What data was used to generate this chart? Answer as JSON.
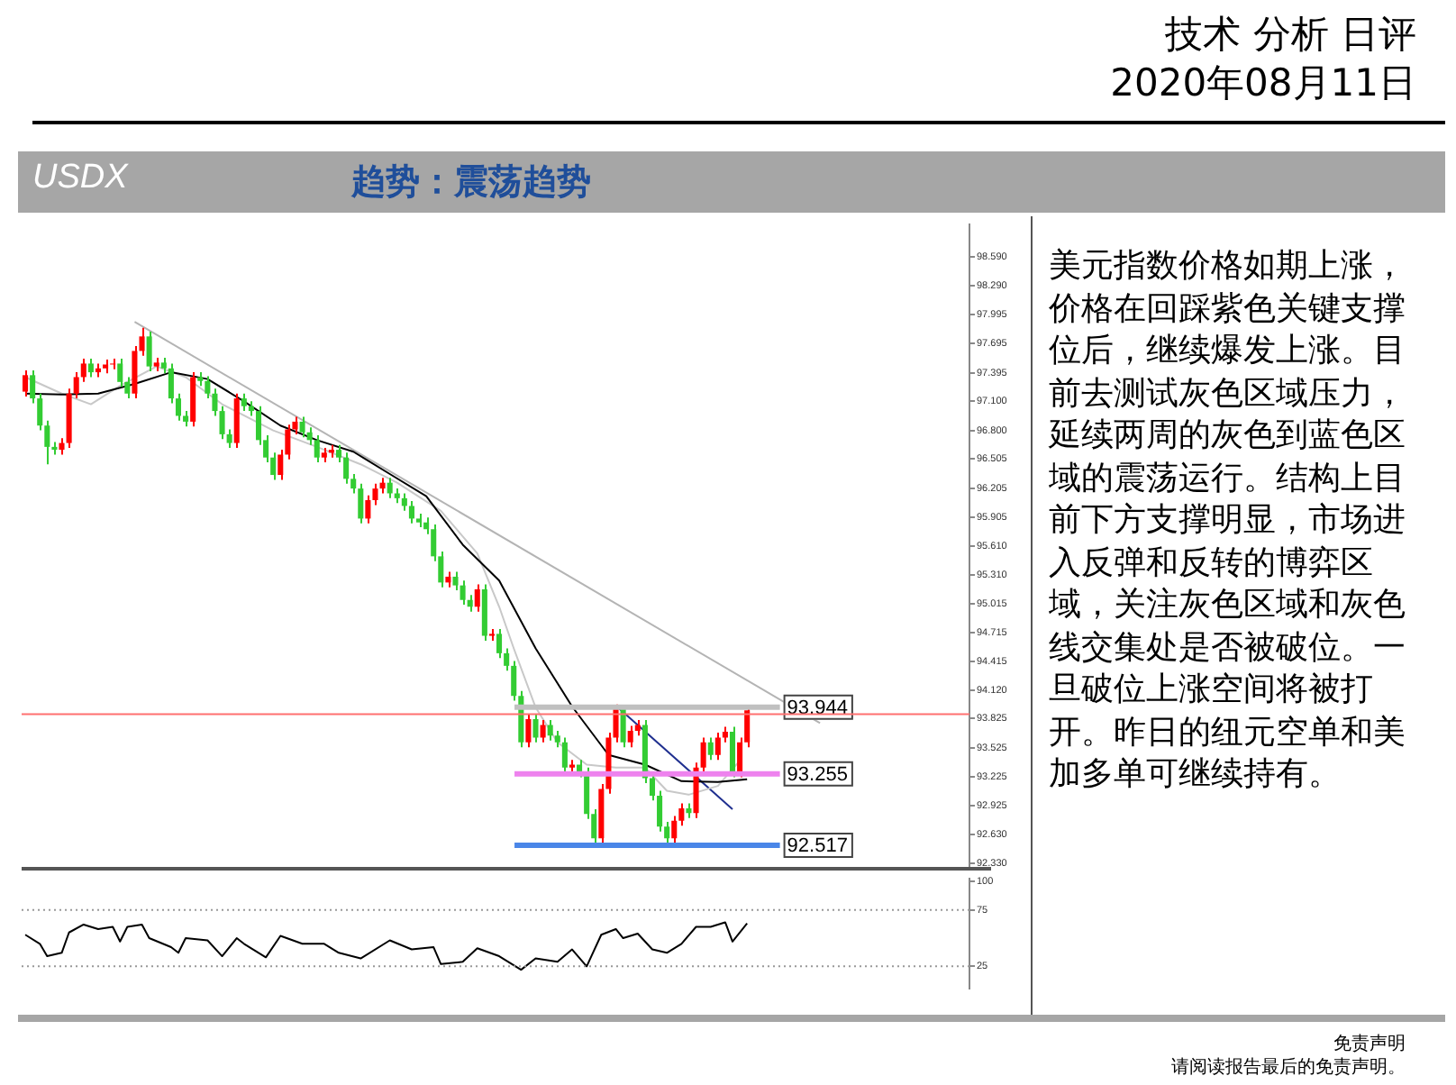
{
  "chart_data": [
    {
      "type": "candlestick",
      "title": "USDX",
      "subtitle": "趋势：震荡趋势",
      "annotations": [
        "技术 分析 日评",
        "2020年08月11日",
        "美元指数价格如期上涨，价格在回踩紫色关键支撑位后，继续爆发上涨。目前去测试灰色区域压力，延续两周的灰色到蓝色区域的震荡运行。结构上目前下方支撑明显，市场进入反弹和反转的博弈区域，关注灰色区域和灰色线交集处是否被破位。一旦破位上涨空间将被打开。昨日的纽元空单和美加多单可继续持有。",
        "免责声明",
        "请阅读报告最后的免责声明。"
      ],
      "categories": [
        null,
        null,
        null,
        null,
        null,
        null,
        null,
        null,
        null,
        null,
        null,
        null,
        null,
        null,
        null,
        null,
        null,
        null,
        null,
        null,
        null,
        null,
        null,
        null,
        null,
        null,
        null,
        null,
        null,
        null,
        null,
        null,
        null,
        null,
        null,
        null,
        null,
        null,
        null,
        null,
        null,
        null,
        null,
        null,
        null,
        null,
        null,
        null,
        null,
        null,
        null,
        null,
        null,
        null,
        null,
        null,
        null,
        null,
        null,
        null,
        null,
        null,
        null,
        null,
        null,
        null,
        null,
        null,
        null,
        null,
        null,
        null,
        null,
        null,
        null,
        null,
        null,
        null,
        null,
        null,
        null,
        null,
        null,
        null,
        null,
        null,
        null,
        null,
        null,
        null,
        null,
        null,
        null,
        null,
        null,
        null,
        null,
        null,
        null,
        null,
        null,
        null,
        null,
        null,
        null,
        null,
        null,
        null,
        null,
        null,
        null,
        null,
        null,
        null,
        null,
        null,
        null,
        null,
        null,
        null,
        null,
        null,
        null,
        null,
        null,
        null,
        null,
        null,
        null,
        null
      ],
      "ohlc": [
        [
          97.2,
          97.42,
          97.15,
          97.37
        ],
        [
          97.37,
          97.42,
          97.08,
          97.13
        ],
        [
          97.13,
          97.18,
          96.8,
          96.85
        ],
        [
          96.85,
          96.9,
          96.45,
          96.63
        ],
        [
          96.63,
          96.68,
          96.55,
          96.6
        ],
        [
          96.6,
          96.72,
          96.55,
          96.67
        ],
        [
          96.67,
          97.23,
          96.62,
          97.18
        ],
        [
          97.18,
          97.4,
          97.13,
          97.35
        ],
        [
          97.35,
          97.54,
          97.3,
          97.49
        ],
        [
          97.49,
          97.54,
          97.35,
          97.4
        ],
        [
          97.4,
          97.49,
          97.35,
          97.44
        ],
        [
          97.44,
          97.53,
          97.39,
          97.48
        ],
        [
          97.48,
          97.54,
          97.43,
          97.49
        ],
        [
          97.49,
          97.54,
          97.25,
          97.3
        ],
        [
          97.3,
          97.35,
          97.13,
          97.18
        ],
        [
          97.18,
          97.67,
          97.13,
          97.62
        ],
        [
          97.62,
          97.86,
          97.57,
          97.77
        ],
        [
          97.77,
          97.82,
          97.41,
          97.46
        ],
        [
          97.46,
          97.55,
          97.41,
          97.5
        ],
        [
          97.5,
          97.55,
          97.39,
          97.44
        ],
        [
          97.44,
          97.49,
          97.08,
          97.13
        ],
        [
          97.13,
          97.18,
          96.9,
          96.95
        ],
        [
          96.95,
          97.0,
          96.84,
          96.89
        ],
        [
          96.89,
          97.4,
          96.84,
          97.35
        ],
        [
          97.35,
          97.4,
          97.26,
          97.31
        ],
        [
          97.31,
          97.36,
          97.13,
          97.18
        ],
        [
          97.18,
          97.23,
          96.95,
          97.0
        ],
        [
          97.0,
          97.05,
          96.71,
          96.76
        ],
        [
          96.76,
          96.81,
          96.62,
          96.67
        ],
        [
          96.67,
          97.18,
          96.62,
          97.13
        ],
        [
          97.13,
          97.18,
          97.0,
          97.05
        ],
        [
          97.05,
          97.1,
          96.95,
          97.0
        ],
        [
          97.0,
          97.05,
          96.65,
          96.7
        ],
        [
          96.7,
          96.75,
          96.47,
          96.52
        ],
        [
          96.52,
          96.57,
          96.29,
          96.34
        ],
        [
          96.34,
          96.6,
          96.29,
          96.55
        ],
        [
          96.55,
          96.86,
          96.5,
          96.81
        ],
        [
          96.81,
          96.94,
          96.76,
          96.89
        ],
        [
          96.89,
          96.94,
          96.73,
          96.78
        ],
        [
          96.78,
          96.83,
          96.65,
          96.7
        ],
        [
          96.7,
          96.75,
          96.47,
          96.52
        ],
        [
          96.52,
          96.62,
          96.47,
          96.57
        ],
        [
          96.57,
          96.65,
          96.52,
          96.6
        ],
        [
          96.6,
          96.65,
          96.47,
          96.52
        ],
        [
          96.52,
          96.57,
          96.25,
          96.3
        ],
        [
          96.3,
          96.35,
          96.15,
          96.2
        ],
        [
          96.2,
          96.25,
          95.84,
          95.89
        ],
        [
          95.89,
          96.13,
          95.84,
          96.08
        ],
        [
          96.08,
          96.25,
          96.03,
          96.2
        ],
        [
          96.2,
          96.31,
          96.15,
          96.26
        ],
        [
          96.26,
          96.31,
          96.1,
          96.15
        ],
        [
          96.15,
          96.2,
          96.05,
          96.1
        ],
        [
          96.1,
          96.15,
          95.97,
          96.02
        ],
        [
          96.02,
          96.07,
          95.84,
          95.89
        ],
        [
          95.89,
          95.94,
          95.8,
          95.85
        ],
        [
          95.85,
          95.9,
          95.73,
          95.78
        ],
        [
          95.78,
          95.83,
          95.45,
          95.5
        ],
        [
          95.5,
          95.55,
          95.18,
          95.23
        ],
        [
          95.23,
          95.34,
          95.18,
          95.29
        ],
        [
          95.29,
          95.34,
          95.15,
          95.2
        ],
        [
          95.2,
          95.25,
          95.0,
          95.05
        ],
        [
          95.05,
          95.1,
          94.93,
          94.98
        ],
        [
          94.98,
          95.21,
          94.93,
          95.16
        ],
        [
          95.16,
          95.21,
          94.63,
          94.68
        ],
        [
          94.68,
          94.75,
          94.63,
          94.7
        ],
        [
          94.7,
          94.75,
          94.45,
          94.5
        ],
        [
          94.5,
          94.55,
          94.32,
          94.37
        ],
        [
          94.37,
          94.42,
          94.01,
          94.06
        ],
        [
          94.06,
          94.11,
          93.53,
          93.58
        ],
        [
          93.58,
          93.87,
          93.53,
          93.82
        ],
        [
          93.82,
          93.87,
          93.58,
          93.63
        ],
        [
          93.63,
          93.81,
          93.58,
          93.76
        ],
        [
          93.76,
          93.81,
          93.6,
          93.65
        ],
        [
          93.65,
          93.7,
          93.53,
          93.58
        ],
        [
          93.58,
          93.63,
          93.27,
          93.32
        ],
        [
          93.32,
          93.4,
          93.27,
          93.35
        ],
        [
          93.35,
          93.4,
          93.22,
          93.27
        ],
        [
          93.27,
          93.32,
          92.79,
          92.84
        ],
        [
          92.84,
          92.89,
          92.52,
          92.59
        ],
        [
          92.59,
          93.15,
          92.54,
          93.1
        ],
        [
          93.1,
          93.68,
          93.05,
          93.63
        ],
        [
          93.63,
          93.97,
          93.58,
          93.95
        ],
        [
          93.95,
          93.96,
          93.53,
          93.58
        ],
        [
          93.58,
          93.75,
          93.53,
          93.7
        ],
        [
          93.7,
          93.81,
          93.65,
          93.76
        ],
        [
          93.76,
          93.81,
          93.16,
          93.21
        ],
        [
          93.21,
          93.26,
          92.98,
          93.03
        ],
        [
          93.03,
          93.08,
          92.66,
          92.71
        ],
        [
          92.71,
          92.76,
          92.52,
          92.59
        ],
        [
          92.59,
          92.82,
          92.54,
          92.77
        ],
        [
          92.77,
          92.95,
          92.72,
          92.9
        ],
        [
          92.9,
          92.95,
          92.8,
          92.85
        ],
        [
          92.85,
          93.37,
          92.8,
          93.32
        ],
        [
          93.32,
          93.63,
          93.27,
          93.58
        ],
        [
          93.58,
          93.63,
          93.4,
          93.45
        ],
        [
          93.45,
          93.68,
          93.4,
          93.63
        ],
        [
          93.63,
          93.74,
          93.58,
          93.69
        ],
        [
          93.69,
          93.74,
          93.22,
          93.27
        ],
        [
          93.27,
          93.63,
          93.22,
          93.58
        ],
        [
          93.58,
          93.95,
          93.53,
          93.91
        ],
        null,
        null,
        null,
        null,
        null,
        null,
        null,
        null,
        null,
        null,
        null,
        null,
        null,
        null,
        null,
        null,
        null,
        null,
        null,
        null,
        null,
        null,
        null,
        null,
        null,
        null,
        null,
        null,
        null,
        null
      ],
      "colors": [
        "#ff0000",
        "#33cc33",
        "#33cc33",
        "#33cc33",
        "#33cc33",
        "#ff0000",
        "#ff0000",
        "#ff0000",
        "#ff0000",
        "#33cc33",
        "#ff0000",
        "#ff0000",
        "#ff0000",
        "#33cc33",
        "#33cc33",
        "#ff0000",
        "#ff0000",
        "#33cc33",
        "#ff0000",
        "#33cc33",
        "#33cc33",
        "#33cc33",
        "#33cc33",
        "#ff0000",
        "#33cc33",
        "#33cc33",
        "#33cc33",
        "#33cc33",
        "#33cc33",
        "#ff0000",
        "#33cc33",
        "#33cc33",
        "#33cc33",
        "#33cc33",
        "#33cc33",
        "#ff0000",
        "#ff0000",
        "#ff0000",
        "#33cc33",
        "#33cc33",
        "#33cc33",
        "#ff0000",
        "#ff0000",
        "#33cc33",
        "#33cc33",
        "#33cc33",
        "#33cc33",
        "#ff0000",
        "#ff0000",
        "#ff0000",
        "#33cc33",
        "#33cc33",
        "#33cc33",
        "#33cc33",
        "#33cc33",
        "#33cc33",
        "#33cc33",
        "#33cc33",
        "#ff0000",
        "#33cc33",
        "#33cc33",
        "#33cc33",
        "#ff0000",
        "#33cc33",
        "#ff0000",
        "#33cc33",
        "#33cc33",
        "#33cc33",
        "#33cc33",
        "#ff0000",
        "#33cc33",
        "#ff0000",
        "#33cc33",
        "#33cc33",
        "#33cc33",
        "#ff0000",
        "#33cc33",
        "#33cc33",
        "#33cc33",
        "#ff0000",
        "#ff0000",
        "#ff0000",
        "#33cc33",
        "#ff0000",
        "#ff0000",
        "#33cc33",
        "#33cc33",
        "#33cc33",
        "#33cc33",
        "#ff0000",
        "#ff0000",
        "#33cc33",
        "#ff0000",
        "#ff0000",
        "#33cc33",
        "#ff0000",
        "#ff0000",
        "#33cc33",
        "#ff0000",
        "#ff0000",
        null,
        null,
        null,
        null,
        null,
        null,
        null,
        null,
        null,
        null,
        null,
        null,
        null,
        null,
        null,
        null,
        null,
        null,
        null,
        null,
        null,
        null,
        null,
        null,
        null,
        null,
        null,
        null,
        null,
        null
      ],
      "series": [
        {
          "type": "line",
          "color": "#000000",
          "values": [
            97.18,
            null,
            null,
            null,
            null,
            97.17,
            null,
            null,
            null,
            null,
            97.18,
            null,
            null,
            null,
            null,
            97.28,
            null,
            null,
            null,
            null,
            97.4,
            null,
            null,
            null,
            null,
            97.33,
            null,
            null,
            null,
            null,
            97.1,
            null,
            null,
            null,
            null,
            96.85,
            null,
            null,
            null,
            null,
            96.7,
            null,
            null,
            null,
            null,
            96.58,
            null,
            null,
            null,
            null,
            96.35,
            null,
            null,
            null,
            null,
            96.12,
            null,
            null,
            null,
            null,
            95.62,
            null,
            null,
            null,
            null,
            95.25,
            null,
            null,
            null,
            null,
            94.55,
            null,
            null,
            null,
            null,
            93.95,
            null,
            null,
            null,
            null,
            93.45,
            null,
            null,
            null,
            null,
            93.35,
            null,
            null,
            null,
            null,
            93.18,
            null,
            null,
            null,
            null,
            93.17,
            null,
            null,
            null,
            93.2,
            null,
            null,
            null,
            null,
            null,
            null,
            null,
            null,
            null,
            null,
            null,
            null,
            null,
            null,
            null,
            null,
            null,
            null,
            null,
            null,
            null,
            null,
            null,
            null,
            null,
            null,
            null,
            null,
            null,
            null
          ]
        },
        {
          "type": "line",
          "color": "#c8c8c8",
          "values": [
            97.35,
            null,
            null,
            null,
            null,
            97.18,
            null,
            null,
            null,
            97.07,
            null,
            null,
            null,
            97.26,
            null,
            null,
            null,
            null,
            97.46,
            null,
            null,
            null,
            97.35,
            null,
            null,
            null,
            null,
            97.07,
            null,
            null,
            null,
            null,
            null,
            null,
            96.8,
            null,
            null,
            null,
            null,
            null,
            96.63,
            null,
            null,
            null,
            null,
            null,
            96.45,
            null,
            null,
            null,
            null,
            96.26,
            null,
            null,
            null,
            null,
            null,
            95.97,
            null,
            null,
            null,
            null,
            95.53,
            null,
            null,
            94.98,
            null,
            94.55,
            null,
            null,
            93.94,
            null,
            null,
            93.58,
            null,
            null,
            null,
            93.35,
            null,
            null,
            null,
            93.32,
            null,
            null,
            null,
            93.32,
            null,
            null,
            93.08,
            null,
            null,
            93.04,
            null,
            null,
            null,
            93.13,
            null,
            null,
            93.39,
            null,
            null,
            null,
            null,
            null,
            null,
            null,
            null,
            null,
            null,
            null,
            null,
            null,
            null,
            null,
            null,
            null,
            null,
            null,
            null,
            null,
            null,
            null,
            null,
            null,
            null,
            null,
            null,
            null,
            null,
            null
          ]
        },
        {
          "type": "line",
          "color": "#b4b4b4",
          "values": [
            null,
            null,
            null,
            null,
            null,
            null,
            null,
            null,
            null,
            null,
            null,
            null,
            null,
            null,
            null,
            97.92,
            null,
            null,
            null,
            null,
            null,
            null,
            null,
            null,
            null,
            null,
            null,
            null,
            null,
            null,
            null,
            null,
            null,
            null,
            null,
            null,
            null,
            null,
            null,
            null,
            null,
            null,
            null,
            null,
            null,
            null,
            null,
            null,
            null,
            null,
            null,
            null,
            null,
            null,
            null,
            null,
            null,
            null,
            null,
            null,
            null,
            null,
            null,
            null,
            null,
            null,
            null,
            null,
            null,
            null,
            null,
            null,
            null,
            null,
            null,
            null,
            null,
            null,
            null,
            null,
            null,
            null,
            null,
            null,
            null,
            null,
            null,
            null,
            null,
            null,
            null,
            null,
            null,
            null,
            null,
            null,
            null,
            null,
            null,
            null,
            null,
            null,
            null,
            null,
            null,
            null,
            null,
            null,
            null,
            93.78,
            null,
            null,
            null,
            null,
            null,
            null,
            null,
            null,
            null,
            null,
            null,
            null,
            null,
            null,
            null,
            null,
            null,
            null,
            null,
            null
          ]
        },
        {
          "type": "line",
          "color": "#1f2f8f",
          "values": [
            null,
            null,
            null,
            null,
            null,
            null,
            null,
            null,
            null,
            null,
            null,
            null,
            null,
            null,
            null,
            null,
            null,
            null,
            null,
            null,
            null,
            null,
            null,
            null,
            null,
            null,
            null,
            null,
            null,
            null,
            null,
            null,
            null,
            null,
            null,
            null,
            null,
            null,
            null,
            null,
            null,
            null,
            null,
            null,
            null,
            null,
            null,
            null,
            null,
            null,
            null,
            null,
            null,
            null,
            null,
            null,
            null,
            null,
            null,
            null,
            null,
            null,
            null,
            null,
            null,
            null,
            null,
            null,
            null,
            null,
            null,
            null,
            null,
            null,
            null,
            null,
            null,
            null,
            null,
            null,
            null,
            93.96,
            null,
            null,
            null,
            null,
            null,
            null,
            null,
            null,
            null,
            null,
            null,
            null,
            null,
            null,
            null,
            92.89,
            null,
            null,
            null,
            null,
            null,
            null,
            null,
            null,
            null,
            null,
            null,
            null,
            null,
            null,
            null,
            null,
            null,
            null,
            null,
            null,
            null,
            null,
            null,
            null,
            null,
            null,
            null,
            null,
            null,
            null,
            null,
            null
          ]
        }
      ],
      "ylim": [
        92.3,
        98.93
      ],
      "yticks": [
        {
          "value": 98.59,
          "label": "98.590"
        },
        {
          "value": 98.29,
          "label": "98.290"
        },
        {
          "value": 97.995,
          "label": "97.995"
        },
        {
          "value": 97.695,
          "label": "97.695"
        },
        {
          "value": 97.395,
          "label": "97.395"
        },
        {
          "value": 97.1,
          "label": "97.100"
        },
        {
          "value": 96.8,
          "label": "96.800"
        },
        {
          "value": 96.505,
          "label": "96.505"
        },
        {
          "value": 96.205,
          "label": "96.205"
        },
        {
          "value": 95.905,
          "label": "95.905"
        },
        {
          "value": 95.61,
          "label": "95.610"
        },
        {
          "value": 95.31,
          "label": "95.310"
        },
        {
          "value": 95.015,
          "label": "95.015"
        },
        {
          "value": 94.715,
          "label": "94.715"
        },
        {
          "value": 94.415,
          "label": "94.415"
        },
        {
          "value": 94.12,
          "label": "94.120"
        },
        {
          "value": 93.825,
          "label": "93.825"
        },
        {
          "value": 93.525,
          "label": "93.525"
        },
        {
          "value": 93.225,
          "label": "93.225"
        },
        {
          "value": 92.925,
          "label": "92.925"
        },
        {
          "value": 92.63,
          "label": "92.630"
        },
        {
          "value": 92.33,
          "label": "92.330"
        }
      ],
      "ref_lines": [
        {
          "axis": "y",
          "value": 93.944,
          "label": "93.944",
          "color": "#c0c0c0"
        },
        {
          "axis": "y",
          "value": 93.87,
          "color": "#ff7070"
        },
        {
          "axis": "y",
          "value": 93.255,
          "label": "93.255",
          "color": "#ee82ee"
        },
        {
          "axis": "y",
          "value": 92.517,
          "label": "92.517",
          "color": "#4a86e8"
        }
      ],
      "tick_labels": "y"
    },
    {
      "type": "line",
      "color": "#000000",
      "categories": [
        null,
        null,
        null,
        null,
        null,
        null,
        null,
        null,
        null,
        null,
        null,
        null,
        null,
        null,
        null,
        null,
        null,
        null,
        null,
        null,
        null,
        null,
        null,
        null,
        null,
        null,
        null,
        null,
        null,
        null,
        null,
        null,
        null,
        null,
        null,
        null,
        null,
        null,
        null,
        null,
        null,
        null,
        null,
        null,
        null,
        null,
        null,
        null,
        null,
        null,
        null,
        null,
        null,
        null,
        null,
        null,
        null,
        null,
        null,
        null,
        null,
        null,
        null,
        null,
        null,
        null,
        null,
        null,
        null,
        null,
        null,
        null,
        null,
        null,
        null,
        null,
        null,
        null,
        null,
        null,
        null,
        null,
        null,
        null,
        null,
        null,
        null,
        null,
        null,
        null,
        null,
        null,
        null,
        null,
        null,
        null,
        null,
        null,
        null,
        null,
        null,
        null,
        null,
        null,
        null,
        null,
        null,
        null,
        null,
        null,
        null,
        null,
        null,
        null,
        null,
        null,
        null,
        null,
        null,
        null,
        null,
        null,
        null,
        null,
        null,
        null,
        null,
        null,
        null,
        null
      ],
      "values": [
        53,
        null,
        45,
        34,
        null,
        37,
        55,
        null,
        62,
        null,
        58,
        null,
        60,
        47,
        60,
        null,
        62,
        50,
        null,
        null,
        42,
        37,
        50,
        null,
        null,
        48,
        null,
        34,
        null,
        50,
        45,
        null,
        null,
        33,
        null,
        52,
        null,
        null,
        45,
        null,
        null,
        45,
        null,
        37,
        null,
        null,
        32,
        null,
        null,
        null,
        48,
        null,
        null,
        40,
        null,
        null,
        42,
        27,
        null,
        null,
        29,
        null,
        41,
        null,
        null,
        34,
        null,
        null,
        22,
        null,
        32,
        null,
        null,
        29,
        null,
        40,
        null,
        25,
        null,
        53,
        null,
        58,
        50,
        null,
        54,
        null,
        40,
        null,
        37,
        null,
        45,
        null,
        60,
        null,
        60,
        null,
        64,
        47,
        null,
        63,
        null,
        null,
        null,
        null,
        null,
        null,
        null,
        null,
        null,
        null,
        null,
        null,
        null,
        null,
        null,
        null,
        null,
        null,
        null,
        null,
        null,
        null,
        null,
        null,
        null,
        null,
        null,
        null,
        null,
        null
      ],
      "ylim": [
        5,
        103
      ],
      "yticks": [
        100,
        75,
        25
      ],
      "ref_lines": [
        {
          "axis": "y",
          "value": 75,
          "color": "#999999",
          "line_style": "dotted"
        },
        {
          "axis": "y",
          "value": 25,
          "color": "#999999",
          "line_style": "dotted"
        }
      ],
      "tick_labels": "y"
    }
  ]
}
